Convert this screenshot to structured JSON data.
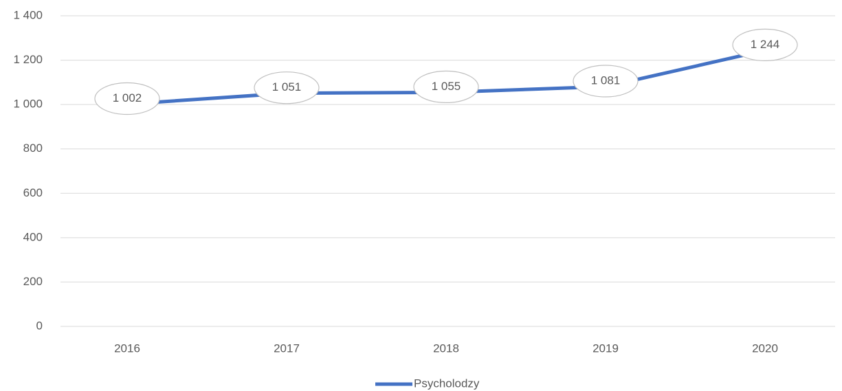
{
  "chart_data": {
    "type": "line",
    "categories": [
      "2016",
      "2017",
      "2018",
      "2019",
      "2020"
    ],
    "series": [
      {
        "name": "Psycholodzy",
        "color": "#4472c4",
        "values": [
          1002,
          1051,
          1055,
          1081,
          1244
        ],
        "value_labels": [
          "1 002",
          "1 051",
          "1 055",
          "1 081",
          "1 244"
        ]
      }
    ],
    "ylim": [
      0,
      1400
    ],
    "yticks": [
      0,
      200,
      400,
      600,
      800,
      {
        "value": 1000,
        "label": "1 000"
      },
      {
        "value": 1200,
        "label": "1 200"
      },
      {
        "value": 1400,
        "label": "1 400"
      }
    ],
    "grid": true,
    "legend": "bottom"
  }
}
